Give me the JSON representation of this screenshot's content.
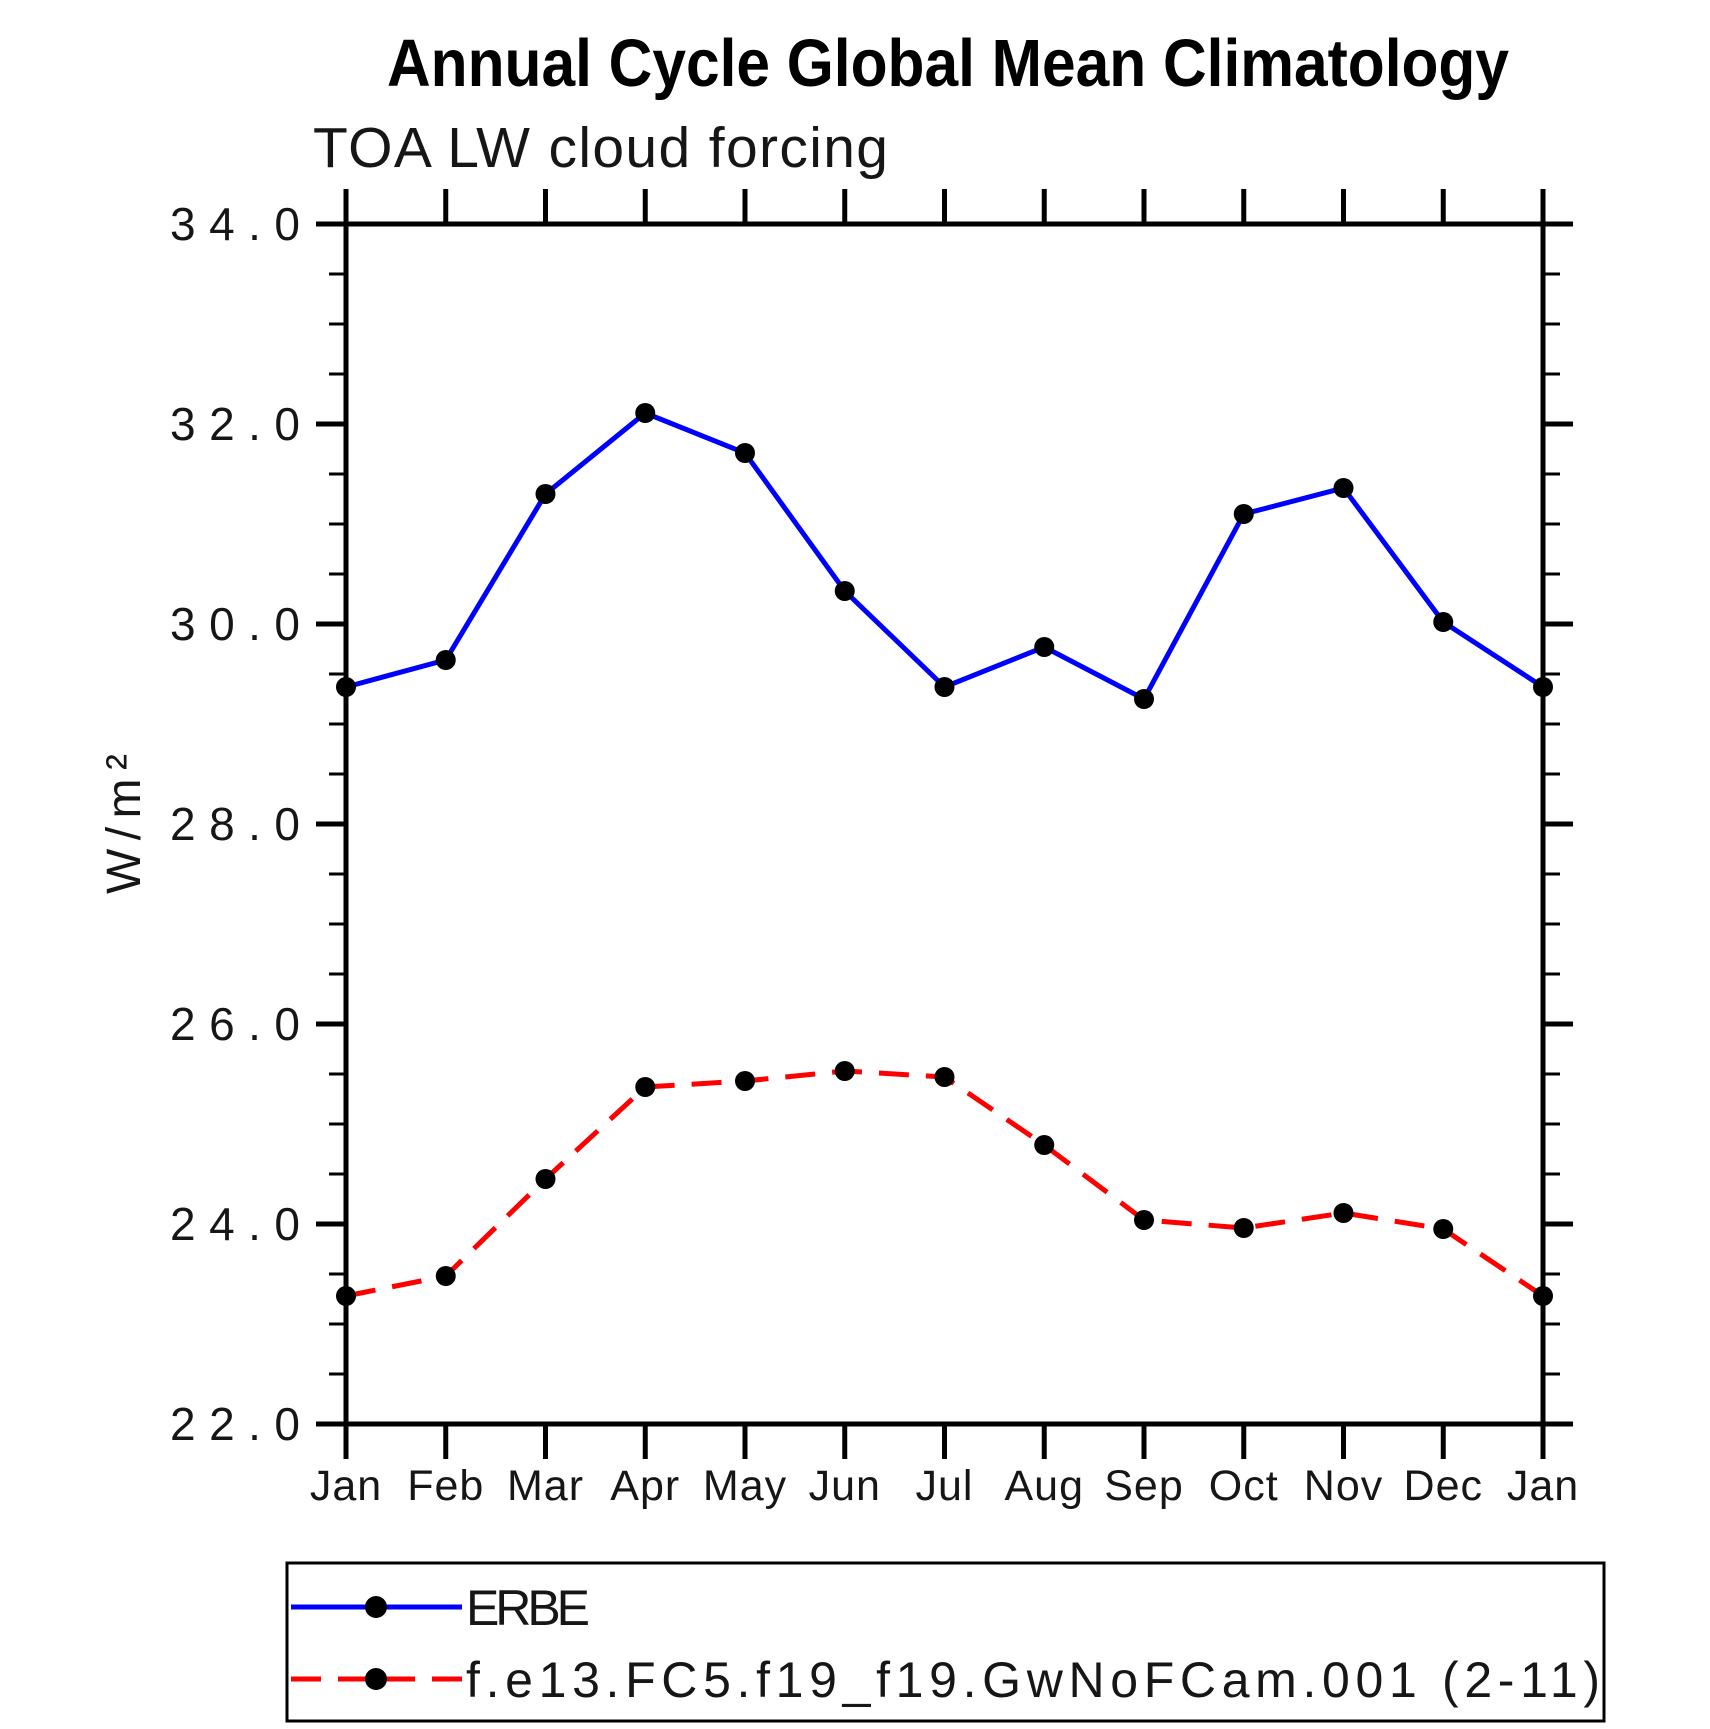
{
  "chart_data": {
    "type": "line",
    "title": "Annual Cycle Global Mean Climatology",
    "subtitle": "TOA LW cloud forcing",
    "ylabel": "W/m²",
    "xlabel": "",
    "categories": [
      "Jan",
      "Feb",
      "Mar",
      "Apr",
      "May",
      "Jun",
      "Jul",
      "Aug",
      "Sep",
      "Oct",
      "Nov",
      "Dec",
      "Jan"
    ],
    "series": [
      {
        "name": "ERBE",
        "color": "#0000ff",
        "line_style": "solid",
        "values": [
          29.37,
          29.64,
          31.3,
          32.11,
          31.71,
          30.33,
          29.37,
          29.77,
          29.25,
          31.1,
          31.36,
          30.02,
          29.37
        ]
      },
      {
        "name": "f.e13.FC5.f19_f19.GwNoFCam.001 (2-11)",
        "color": "#ff0000",
        "line_style": "dashed",
        "values": [
          23.28,
          23.48,
          24.45,
          25.37,
          25.43,
          25.53,
          25.47,
          24.79,
          24.04,
          23.96,
          24.11,
          23.95,
          23.28
        ]
      }
    ],
    "marker": {
      "shape": "circle",
      "color": "#000000"
    },
    "ylim": [
      22.0,
      34.0
    ],
    "ytick_major": [
      22,
      24,
      26,
      28,
      30,
      32,
      34
    ],
    "ytick_labels": [
      "22.0",
      "24.0",
      "26.0",
      "28.0",
      "30.0",
      "32.0",
      "34.0"
    ],
    "ytick_minor_step": 0.5,
    "grid": false,
    "axis_color": "#000000",
    "background_color": "#ffffff",
    "legend_position": "bottom-left"
  }
}
